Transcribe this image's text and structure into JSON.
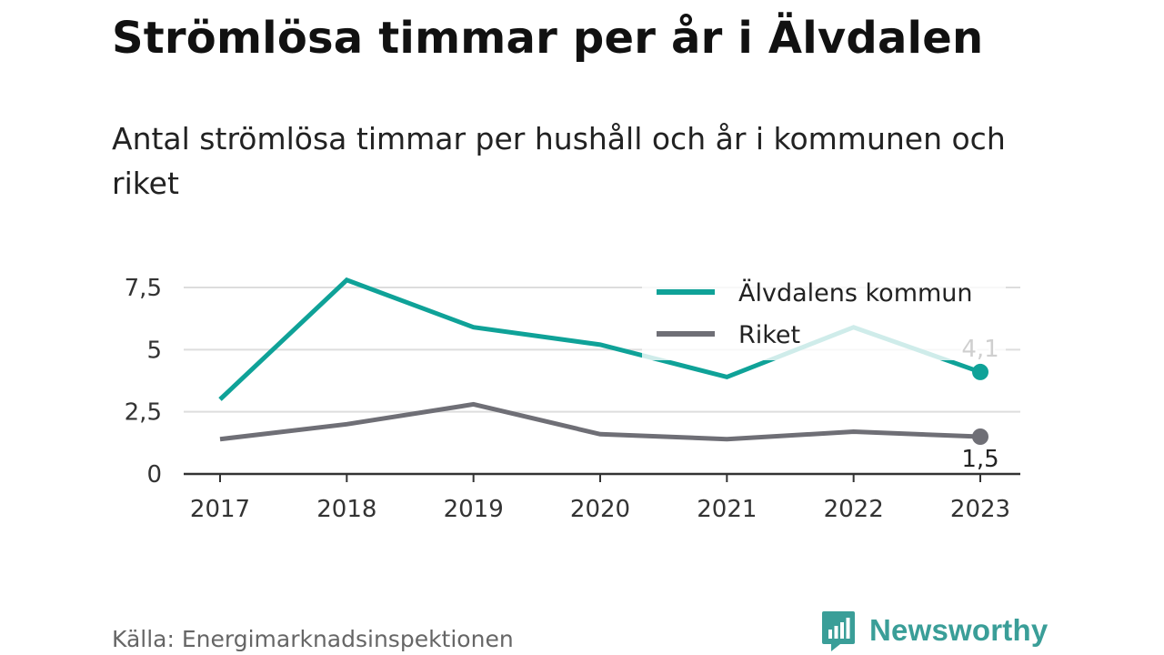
{
  "title": "Strömlösa timmar per år i Älvdalen",
  "subtitle": "Antal strömlösa timmar per hushåll och år i kommunen och riket",
  "source": "Källa: Energimarknadsinspektionen",
  "brand": {
    "name": "Newsworthy",
    "logo_icon": "newsworthy-bar-chart-icon",
    "color": "#3a9e98"
  },
  "chart_data": {
    "type": "line",
    "x": [
      "2017",
      "2018",
      "2019",
      "2020",
      "2021",
      "2022",
      "2023"
    ],
    "ylim": [
      0,
      7.5
    ],
    "yticks": [
      0,
      2.5,
      5,
      7.5
    ],
    "ytick_labels": [
      "0",
      "2,5",
      "5",
      "7,5"
    ],
    "grid": true,
    "legend_position": "top-right",
    "series": [
      {
        "name": "Älvdalens kommun",
        "color": "#0fa298",
        "values": [
          3.0,
          7.8,
          5.9,
          5.2,
          3.9,
          5.9,
          4.1
        ],
        "end_label": "4,1"
      },
      {
        "name": "Riket",
        "color": "#6f6f76",
        "values": [
          1.4,
          2.0,
          2.8,
          1.6,
          1.4,
          1.7,
          1.5
        ],
        "end_label": "1,5"
      }
    ]
  }
}
